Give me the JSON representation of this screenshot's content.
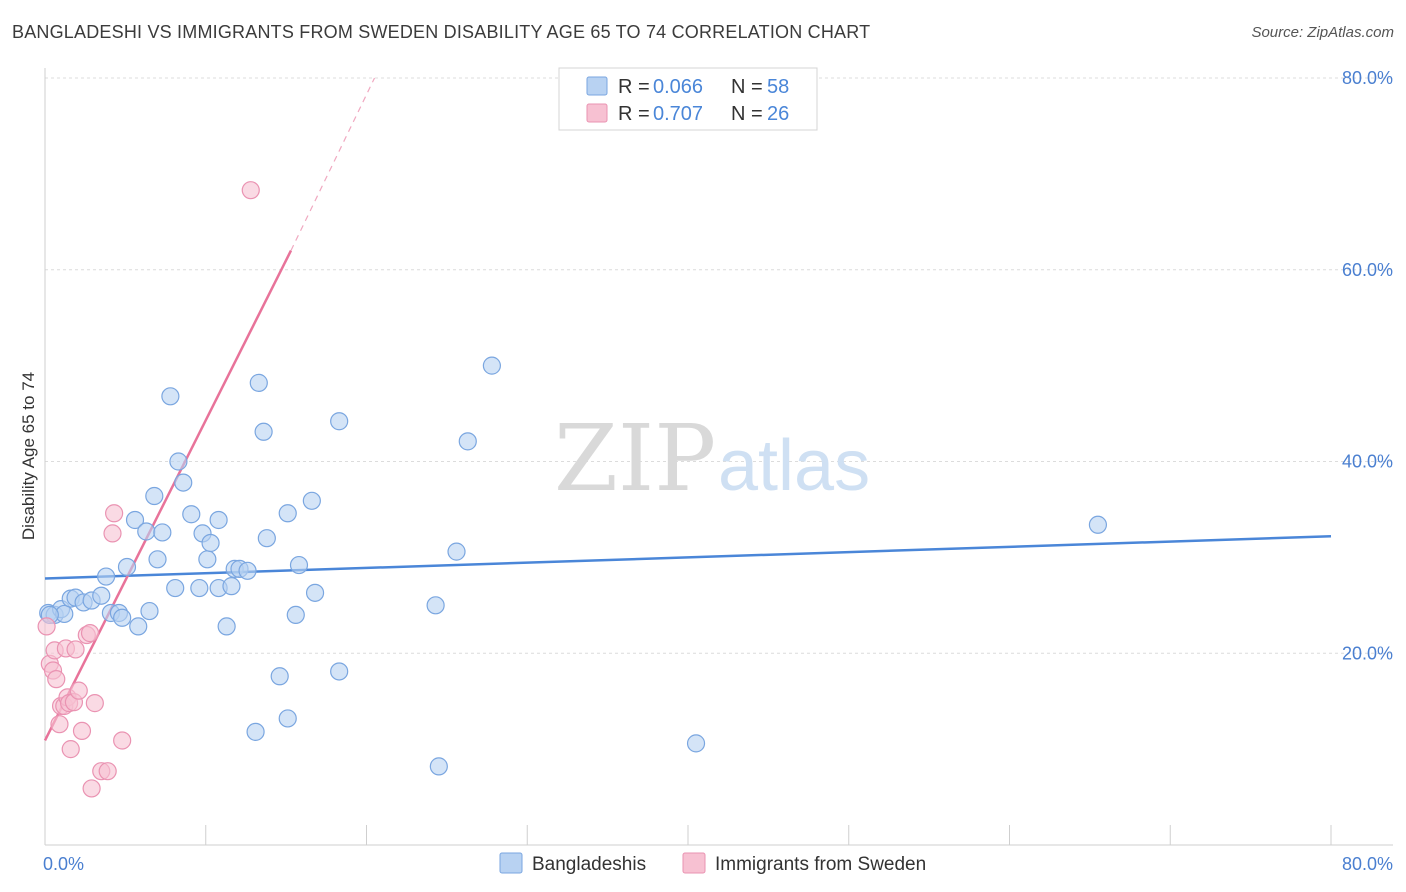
{
  "title": "BANGLADESHI VS IMMIGRANTS FROM SWEDEN DISABILITY AGE 65 TO 74 CORRELATION CHART",
  "source": "Source: ZipAtlas.com",
  "watermark": {
    "zip": "ZIP",
    "atlas": "atlas"
  },
  "colors": {
    "blue": "#4a86d8",
    "blue_fill": "#b8d2f2",
    "pink": "#e8739a",
    "pink_fill": "#f7c1d2",
    "tick_text": "#4a7fd0"
  },
  "legend": {
    "rows": [
      {
        "r_label": "R =",
        "r_value": "0.066",
        "n_label": "N =",
        "n_value": "58"
      },
      {
        "r_label": "R =",
        "r_value": "0.707",
        "n_label": "N =",
        "n_value": "26"
      }
    ]
  },
  "chart_data": {
    "type": "scatter",
    "title": "BANGLADESHI VS IMMIGRANTS FROM SWEDEN DISABILITY AGE 65 TO 74 CORRELATION CHART",
    "xlabel": "",
    "ylabel": "Disability Age 65 to 74",
    "xlim": [
      0,
      80
    ],
    "ylim": [
      0,
      80
    ],
    "x_tick_labels": [
      "0.0%",
      "80.0%"
    ],
    "y_tick_labels": [
      "20.0%",
      "40.0%",
      "60.0%",
      "80.0%"
    ],
    "y_ticks": [
      20,
      40,
      60,
      80
    ],
    "grid": true,
    "legend_position": "top-center",
    "series": [
      {
        "name": "Bangladeshis",
        "color": "#4a86d8",
        "trend": {
          "x": [
            0,
            80
          ],
          "y": [
            27.8,
            32.2
          ]
        },
        "points": [
          [
            0.2,
            24.2
          ],
          [
            0.6,
            24.0
          ],
          [
            1.0,
            24.6
          ],
          [
            1.2,
            24.1
          ],
          [
            1.6,
            25.7
          ],
          [
            1.9,
            25.8
          ],
          [
            2.4,
            25.3
          ],
          [
            2.9,
            25.5
          ],
          [
            3.5,
            26.0
          ],
          [
            3.8,
            28.0
          ],
          [
            4.1,
            24.2
          ],
          [
            4.6,
            24.2
          ],
          [
            4.8,
            23.7
          ],
          [
            5.1,
            29.0
          ],
          [
            5.6,
            33.9
          ],
          [
            5.8,
            22.8
          ],
          [
            6.3,
            32.7
          ],
          [
            6.5,
            24.4
          ],
          [
            6.8,
            36.4
          ],
          [
            7.0,
            29.8
          ],
          [
            7.3,
            32.6
          ],
          [
            7.8,
            46.8
          ],
          [
            8.1,
            26.8
          ],
          [
            8.3,
            40.0
          ],
          [
            8.6,
            37.8
          ],
          [
            9.1,
            34.5
          ],
          [
            9.6,
            26.8
          ],
          [
            9.8,
            32.5
          ],
          [
            10.1,
            29.8
          ],
          [
            10.3,
            31.5
          ],
          [
            10.8,
            33.9
          ],
          [
            10.8,
            26.8
          ],
          [
            11.3,
            22.8
          ],
          [
            11.6,
            27.0
          ],
          [
            11.8,
            28.8
          ],
          [
            12.1,
            28.8
          ],
          [
            12.6,
            28.6
          ],
          [
            13.1,
            11.8
          ],
          [
            13.3,
            48.2
          ],
          [
            13.6,
            43.1
          ],
          [
            13.8,
            32.0
          ],
          [
            14.6,
            17.6
          ],
          [
            15.1,
            34.6
          ],
          [
            15.1,
            13.2
          ],
          [
            15.6,
            24.0
          ],
          [
            15.8,
            29.2
          ],
          [
            16.6,
            35.9
          ],
          [
            16.8,
            26.3
          ],
          [
            18.3,
            44.2
          ],
          [
            18.3,
            18.1
          ],
          [
            24.3,
            25.0
          ],
          [
            24.5,
            8.2
          ],
          [
            25.6,
            30.6
          ],
          [
            26.3,
            42.1
          ],
          [
            27.8,
            50.0
          ],
          [
            40.5,
            10.6
          ],
          [
            65.5,
            33.4
          ],
          [
            0.3,
            24.0
          ]
        ]
      },
      {
        "name": "Immigrants from Sweden",
        "color": "#e8739a",
        "trend": {
          "x": [
            0,
            15.3
          ],
          "y": [
            10.9,
            62.0
          ]
        },
        "trend_dashed": {
          "x": [
            15.3,
            20.5
          ],
          "y": [
            62.0,
            80.0
          ]
        },
        "points": [
          [
            0.1,
            22.8
          ],
          [
            0.3,
            18.9
          ],
          [
            0.5,
            18.2
          ],
          [
            0.6,
            20.3
          ],
          [
            0.7,
            17.3
          ],
          [
            0.9,
            12.6
          ],
          [
            1.0,
            14.5
          ],
          [
            1.2,
            14.5
          ],
          [
            1.3,
            20.5
          ],
          [
            1.4,
            15.4
          ],
          [
            1.5,
            14.8
          ],
          [
            1.6,
            10.0
          ],
          [
            1.8,
            14.9
          ],
          [
            1.9,
            20.4
          ],
          [
            2.1,
            16.1
          ],
          [
            2.3,
            11.9
          ],
          [
            2.6,
            21.9
          ],
          [
            2.8,
            22.1
          ],
          [
            2.9,
            5.9
          ],
          [
            3.1,
            14.8
          ],
          [
            3.5,
            7.7
          ],
          [
            3.9,
            7.7
          ],
          [
            4.2,
            32.5
          ],
          [
            4.3,
            34.6
          ],
          [
            4.8,
            10.9
          ],
          [
            12.8,
            68.3
          ]
        ]
      }
    ]
  },
  "bottom_legend": [
    {
      "label": "Bangladeshis"
    },
    {
      "label": "Immigrants from Sweden"
    }
  ]
}
